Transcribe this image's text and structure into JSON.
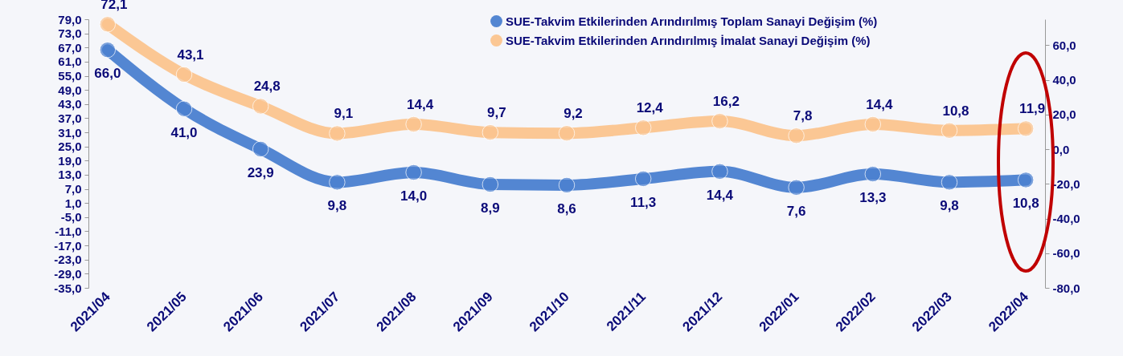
{
  "chart_data": {
    "type": "line",
    "categories": [
      "2021/04",
      "2021/05",
      "2021/06",
      "2021/07",
      "2021/08",
      "2021/09",
      "2021/10",
      "2021/11",
      "2021/12",
      "2022/01",
      "2022/02",
      "2022/03",
      "2022/04"
    ],
    "series": [
      {
        "name": "SUE-Takvim Etkilerinden Arındırılmış Toplam Sanayi Değişim (%)",
        "color": "#4a7fd0",
        "values": [
          66.0,
          41.0,
          23.9,
          9.8,
          14.0,
          8.9,
          8.6,
          11.3,
          14.4,
          7.6,
          13.3,
          9.8,
          10.8
        ],
        "value_labels": [
          "66,0",
          "41,0",
          "23,9",
          "9,8",
          "14,0",
          "8,9",
          "8,6",
          "11,3",
          "14,4",
          "7,6",
          "13,3",
          "9,8",
          "10,8"
        ]
      },
      {
        "name": "SUE-Takvim Etkilerinden Arındırılmış İmalat Sanayi Değişim (%)",
        "color": "#fbc48e",
        "axis": "y2",
        "values": [
          72.1,
          43.1,
          24.8,
          9.1,
          14.4,
          9.7,
          9.2,
          12.4,
          16.2,
          7.8,
          14.4,
          10.8,
          11.9
        ],
        "value_labels": [
          "72,1",
          "43,1",
          "24,8",
          "9,1",
          "14,4",
          "9,7",
          "9,2",
          "12,4",
          "16,2",
          "7,8",
          "14,4",
          "10,8",
          "11,9"
        ]
      }
    ],
    "ylim": [
      -35,
      79
    ],
    "yticks": [
      {
        "value": 79,
        "label": "79,0"
      },
      {
        "value": 73,
        "label": "73,0"
      },
      {
        "value": 67,
        "label": "67,0"
      },
      {
        "value": 61,
        "label": "61,0"
      },
      {
        "value": 55,
        "label": "55,0"
      },
      {
        "value": 49,
        "label": "49,0"
      },
      {
        "value": 43,
        "label": "43,0"
      },
      {
        "value": 37,
        "label": "37,0"
      },
      {
        "value": 31,
        "label": "31,0"
      },
      {
        "value": 25,
        "label": "25,0"
      },
      {
        "value": 19,
        "label": "19,0"
      },
      {
        "value": 13,
        "label": "13,0"
      },
      {
        "value": 7,
        "label": "7,0"
      },
      {
        "value": 1,
        "label": "1,0"
      },
      {
        "value": -5,
        "label": "-5,0"
      },
      {
        "value": -11,
        "label": "-11,0"
      },
      {
        "value": -17,
        "label": "-17,0"
      },
      {
        "value": -23,
        "label": "-23,0"
      },
      {
        "value": -29,
        "label": "-29,0"
      },
      {
        "value": -35,
        "label": "-35,0"
      }
    ],
    "y2lim": [
      -80,
      75
    ],
    "y2ticks": [
      {
        "value": 60,
        "label": "60,0"
      },
      {
        "value": 40,
        "label": "40,0"
      },
      {
        "value": 20,
        "label": "20,0"
      },
      {
        "value": 0,
        "label": "0,0"
      },
      {
        "value": -20,
        "label": "-20,0"
      },
      {
        "value": -40,
        "label": "-40,0"
      },
      {
        "value": -60,
        "label": "-60,0"
      },
      {
        "value": -80,
        "label": "-80,0"
      }
    ],
    "legend": "top right",
    "marker": "circle",
    "grid": false,
    "line_style": "solid"
  }
}
